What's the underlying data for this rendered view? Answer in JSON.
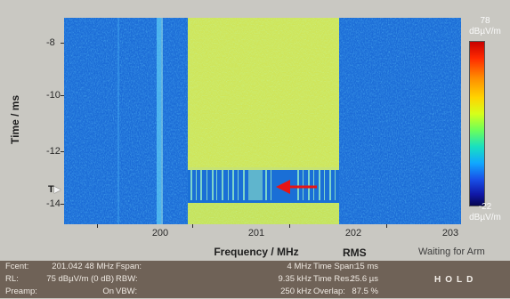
{
  "y_axis": {
    "title": "Time / ms",
    "ticks": [
      "-8",
      "-10",
      "-12",
      "-14"
    ],
    "trigger_label": "T"
  },
  "x_axis": {
    "title": "Frequency / MHz",
    "ticks": [
      "200",
      "201",
      "202",
      "203"
    ]
  },
  "detector": "RMS",
  "status": "Waiting for Arm",
  "colorbar": {
    "max": "78",
    "max_unit": "dBµV/m",
    "min": "-22",
    "min_unit": "dBµV/m"
  },
  "info": {
    "rows": [
      {
        "label1": "Fcent:",
        "value1": "201.042 48 MHz",
        "label2": "Fspan:",
        "value2": "4 MHz",
        "label3": "Time Span:",
        "value3": "15 ms"
      },
      {
        "label1": "RL:",
        "value1": "75 dBµV/m (0 dB)",
        "label2": "RBW:",
        "value2": "9.35 kHz",
        "label3": "Time Res.:",
        "value3": "25.6 µs"
      },
      {
        "label1": "Preamp:",
        "value1": "On",
        "label2": "VBW:",
        "value2": "250 kHz",
        "label3": "Overlap:",
        "value3": "87.5 %"
      }
    ],
    "hold": "HOLD"
  },
  "colors": {
    "background": "#c9c8c2",
    "plot_noise": "#1d6fd9",
    "signal": "#d8e85a",
    "panel": "#6f6257",
    "arrow": "#e81414"
  }
}
